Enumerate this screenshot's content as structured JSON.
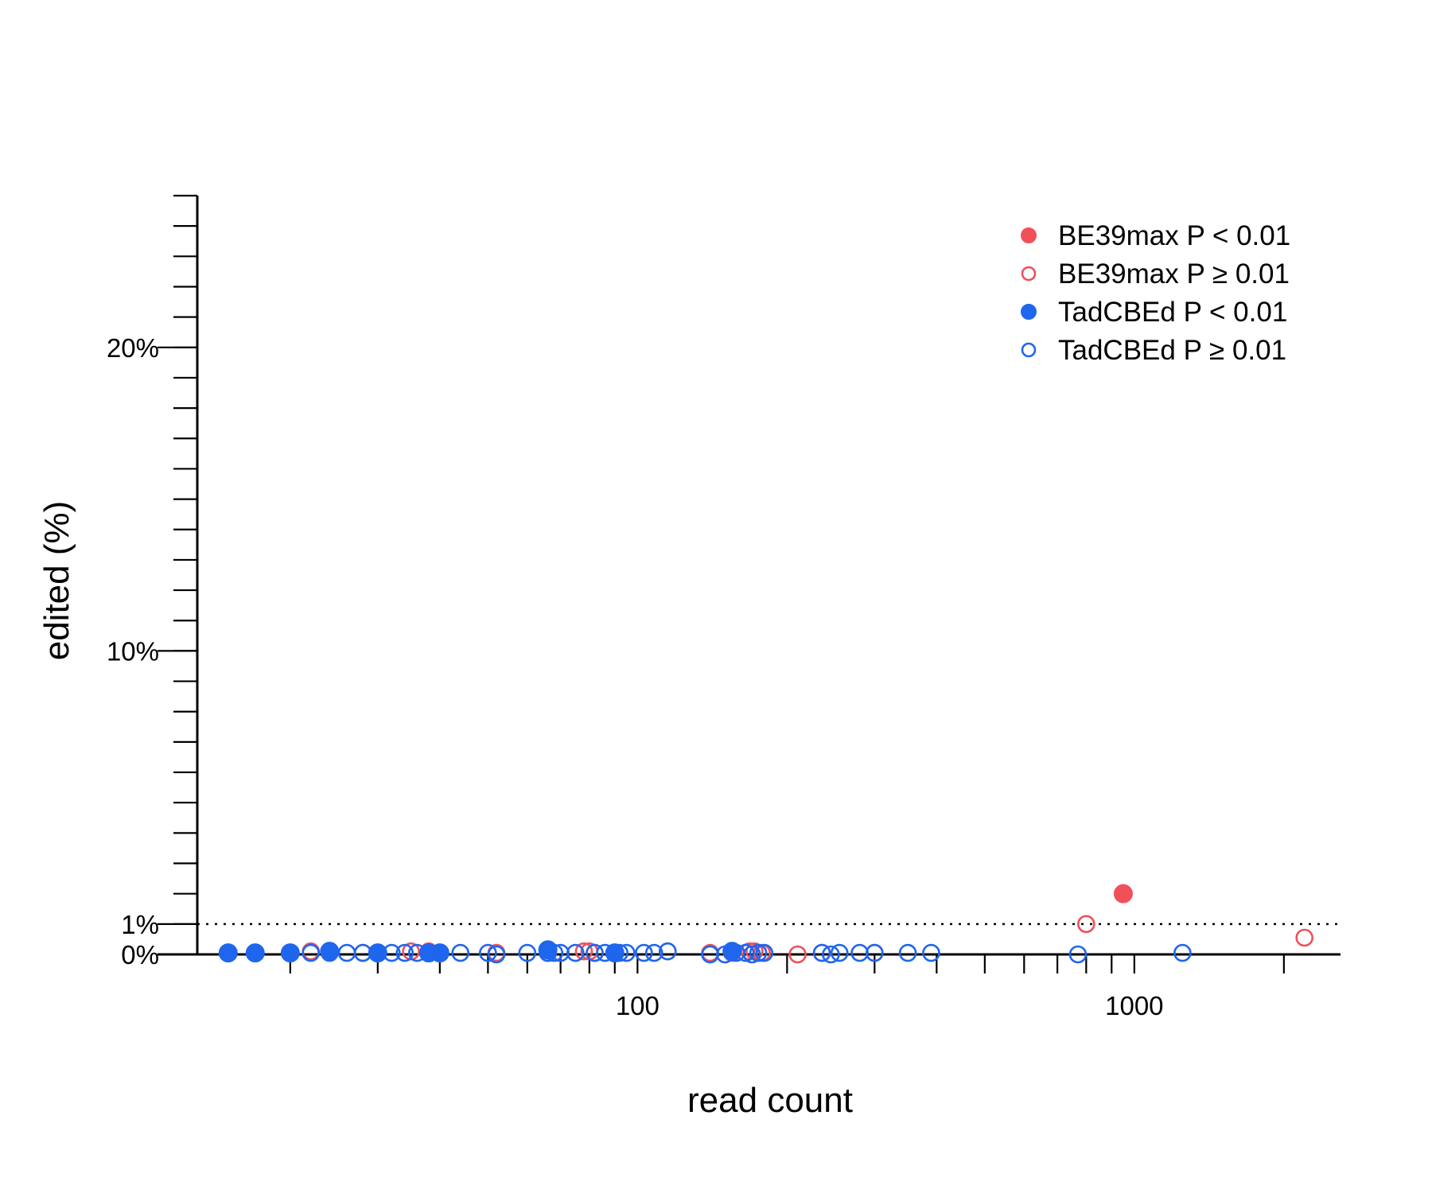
{
  "chart_data": {
    "type": "scatter",
    "title": "",
    "xlabel": "read count",
    "ylabel": "edited (%)",
    "x_scale": "log",
    "xlim": [
      13,
      2600
    ],
    "ylim": [
      0,
      25
    ],
    "x_tick_labels": [
      "100",
      "1000"
    ],
    "x_major_ticks": [
      100,
      1000
    ],
    "x_minor_ticks": [
      20,
      30,
      40,
      50,
      60,
      70,
      80,
      90,
      200,
      300,
      400,
      500,
      600,
      700,
      800,
      900,
      2000
    ],
    "y_tick_labels": [
      {
        "value": 0,
        "label": "0%"
      },
      {
        "value": 1,
        "label": "1%"
      },
      {
        "value": 10,
        "label": "10%"
      },
      {
        "value": 20,
        "label": "20%"
      }
    ],
    "y_minor_step": 1,
    "reference_line": {
      "y": 1,
      "style": "dotted"
    },
    "grid": false,
    "legend_position": "top-right",
    "colors": {
      "BE39max": "#f0505a",
      "TadCBEd": "#1f66ee"
    },
    "series": [
      {
        "name": "BE39max P < 0.01",
        "color": "#f0505a",
        "filled": true,
        "points": [
          [
            950,
            2.0
          ]
        ]
      },
      {
        "name": "BE39max P ≥ 0.01",
        "color": "#f0505a",
        "filled": false,
        "points": [
          [
            15,
            0.05
          ],
          [
            17,
            0.05
          ],
          [
            20,
            0.05
          ],
          [
            22,
            0.1
          ],
          [
            24,
            0.1
          ],
          [
            28,
            0.05
          ],
          [
            35,
            0.1
          ],
          [
            38,
            0.1
          ],
          [
            52,
            0.05
          ],
          [
            66,
            0.05
          ],
          [
            78,
            0.1
          ],
          [
            80,
            0.1
          ],
          [
            82,
            0.05
          ],
          [
            115,
            0.1
          ],
          [
            140,
            0.05
          ],
          [
            155,
            0.05
          ],
          [
            168,
            0.1
          ],
          [
            172,
            0.1
          ],
          [
            178,
            0.05
          ],
          [
            210,
            0.0
          ],
          [
            235,
            0.05
          ],
          [
            300,
            0.05
          ],
          [
            800,
            1.0
          ],
          [
            2200,
            0.55
          ]
        ]
      },
      {
        "name": "TadCBEd P < 0.01",
        "color": "#1f66ee",
        "filled": true,
        "points": [
          [
            15,
            0.05
          ],
          [
            17,
            0.05
          ],
          [
            20,
            0.05
          ],
          [
            24,
            0.1
          ],
          [
            30,
            0.05
          ],
          [
            38,
            0.05
          ],
          [
            40,
            0.05
          ],
          [
            66,
            0.15
          ],
          [
            90,
            0.05
          ],
          [
            155,
            0.1
          ]
        ]
      },
      {
        "name": "TadCBEd P ≥ 0.01",
        "color": "#1f66ee",
        "filled": false,
        "points": [
          [
            15,
            0.05
          ],
          [
            17,
            0.05
          ],
          [
            20,
            0.05
          ],
          [
            22,
            0.05
          ],
          [
            24,
            0.05
          ],
          [
            26,
            0.05
          ],
          [
            28,
            0.05
          ],
          [
            30,
            0.05
          ],
          [
            32,
            0.05
          ],
          [
            34,
            0.05
          ],
          [
            36,
            0.05
          ],
          [
            38,
            0.05
          ],
          [
            40,
            0.05
          ],
          [
            44,
            0.05
          ],
          [
            50,
            0.05
          ],
          [
            52,
            0.0
          ],
          [
            60,
            0.05
          ],
          [
            66,
            0.05
          ],
          [
            68,
            0.05
          ],
          [
            70,
            0.05
          ],
          [
            75,
            0.05
          ],
          [
            82,
            0.05
          ],
          [
            86,
            0.05
          ],
          [
            90,
            0.05
          ],
          [
            92,
            0.05
          ],
          [
            95,
            0.05
          ],
          [
            103,
            0.05
          ],
          [
            108,
            0.05
          ],
          [
            115,
            0.1
          ],
          [
            140,
            0.0
          ],
          [
            150,
            0.0
          ],
          [
            158,
            0.05
          ],
          [
            165,
            0.05
          ],
          [
            170,
            0.0
          ],
          [
            175,
            0.05
          ],
          [
            180,
            0.05
          ],
          [
            235,
            0.05
          ],
          [
            245,
            0.0
          ],
          [
            255,
            0.05
          ],
          [
            280,
            0.05
          ],
          [
            300,
            0.05
          ],
          [
            350,
            0.05
          ],
          [
            390,
            0.05
          ],
          [
            770,
            0.0
          ],
          [
            1250,
            0.05
          ]
        ]
      }
    ]
  }
}
